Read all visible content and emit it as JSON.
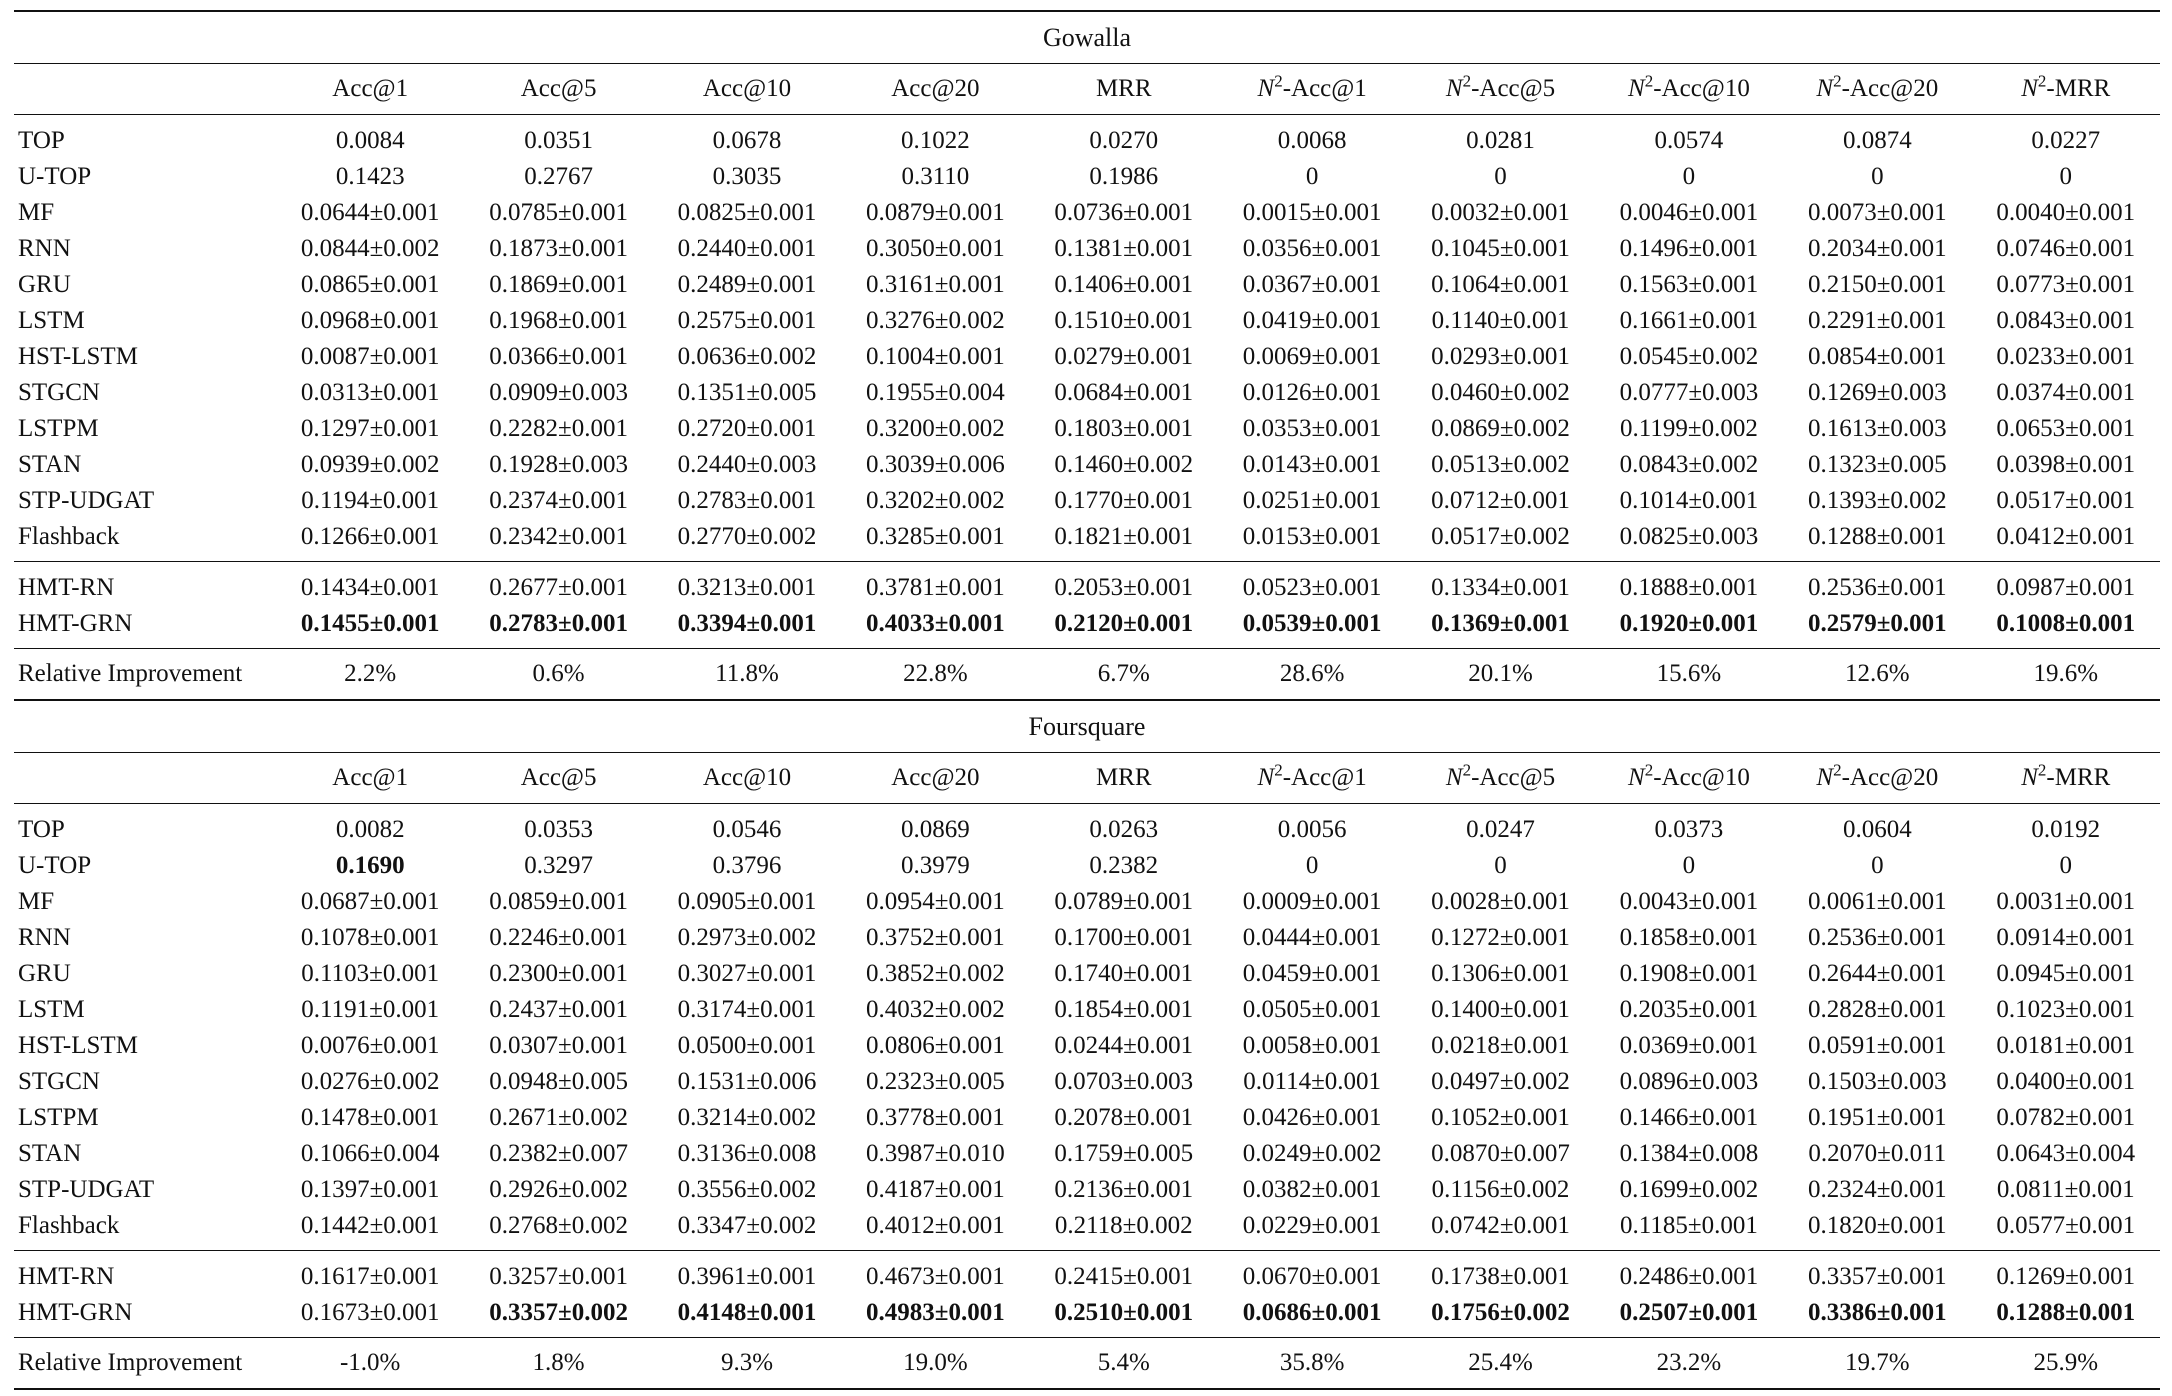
{
  "columns": [
    "Acc@1",
    "Acc@5",
    "Acc@10",
    "Acc@20",
    "MRR",
    "N2-Acc@1",
    "N2-Acc@5",
    "N2-Acc@10",
    "N2-Acc@20",
    "N2-MRR"
  ],
  "sections": [
    {
      "title": "Gowalla",
      "rows": [
        {
          "name": "TOP",
          "values": [
            "0.0084",
            "0.0351",
            "0.0678",
            "0.1022",
            "0.0270",
            "0.0068",
            "0.0281",
            "0.0574",
            "0.0874",
            "0.0227"
          ],
          "bold": []
        },
        {
          "name": "U-TOP",
          "values": [
            "0.1423",
            "0.2767",
            "0.3035",
            "0.3110",
            "0.1986",
            "0",
            "0",
            "0",
            "0",
            "0"
          ],
          "bold": []
        },
        {
          "name": "MF",
          "values": [
            "0.0644±0.001",
            "0.0785±0.001",
            "0.0825±0.001",
            "0.0879±0.001",
            "0.0736±0.001",
            "0.0015±0.001",
            "0.0032±0.001",
            "0.0046±0.001",
            "0.0073±0.001",
            "0.0040±0.001"
          ],
          "bold": []
        },
        {
          "name": "RNN",
          "values": [
            "0.0844±0.002",
            "0.1873±0.001",
            "0.2440±0.001",
            "0.3050±0.001",
            "0.1381±0.001",
            "0.0356±0.001",
            "0.1045±0.001",
            "0.1496±0.001",
            "0.2034±0.001",
            "0.0746±0.001"
          ],
          "bold": []
        },
        {
          "name": "GRU",
          "values": [
            "0.0865±0.001",
            "0.1869±0.001",
            "0.2489±0.001",
            "0.3161±0.001",
            "0.1406±0.001",
            "0.0367±0.001",
            "0.1064±0.001",
            "0.1563±0.001",
            "0.2150±0.001",
            "0.0773±0.001"
          ],
          "bold": []
        },
        {
          "name": "LSTM",
          "values": [
            "0.0968±0.001",
            "0.1968±0.001",
            "0.2575±0.001",
            "0.3276±0.002",
            "0.1510±0.001",
            "0.0419±0.001",
            "0.1140±0.001",
            "0.1661±0.001",
            "0.2291±0.001",
            "0.0843±0.001"
          ],
          "bold": []
        },
        {
          "name": "HST-LSTM",
          "values": [
            "0.0087±0.001",
            "0.0366±0.001",
            "0.0636±0.002",
            "0.1004±0.001",
            "0.0279±0.001",
            "0.0069±0.001",
            "0.0293±0.001",
            "0.0545±0.002",
            "0.0854±0.001",
            "0.0233±0.001"
          ],
          "bold": []
        },
        {
          "name": "STGCN",
          "values": [
            "0.0313±0.001",
            "0.0909±0.003",
            "0.1351±0.005",
            "0.1955±0.004",
            "0.0684±0.001",
            "0.0126±0.001",
            "0.0460±0.002",
            "0.0777±0.003",
            "0.1269±0.003",
            "0.0374±0.001"
          ],
          "bold": []
        },
        {
          "name": "LSTPM",
          "values": [
            "0.1297±0.001",
            "0.2282±0.001",
            "0.2720±0.001",
            "0.3200±0.002",
            "0.1803±0.001",
            "0.0353±0.001",
            "0.0869±0.002",
            "0.1199±0.002",
            "0.1613±0.003",
            "0.0653±0.001"
          ],
          "bold": []
        },
        {
          "name": "STAN",
          "values": [
            "0.0939±0.002",
            "0.1928±0.003",
            "0.2440±0.003",
            "0.3039±0.006",
            "0.1460±0.002",
            "0.0143±0.001",
            "0.0513±0.002",
            "0.0843±0.002",
            "0.1323±0.005",
            "0.0398±0.001"
          ],
          "bold": []
        },
        {
          "name": "STP-UDGAT",
          "values": [
            "0.1194±0.001",
            "0.2374±0.001",
            "0.2783±0.001",
            "0.3202±0.002",
            "0.1770±0.001",
            "0.0251±0.001",
            "0.0712±0.001",
            "0.1014±0.001",
            "0.1393±0.002",
            "0.0517±0.001"
          ],
          "bold": []
        },
        {
          "name": "Flashback",
          "values": [
            "0.1266±0.001",
            "0.2342±0.001",
            "0.2770±0.002",
            "0.3285±0.001",
            "0.1821±0.001",
            "0.0153±0.001",
            "0.0517±0.002",
            "0.0825±0.003",
            "0.1288±0.001",
            "0.0412±0.001"
          ],
          "bold": []
        }
      ],
      "hmt_rows": [
        {
          "name": "HMT-RN",
          "values": [
            "0.1434±0.001",
            "0.2677±0.001",
            "0.3213±0.001",
            "0.3781±0.001",
            "0.2053±0.001",
            "0.0523±0.001",
            "0.1334±0.001",
            "0.1888±0.001",
            "0.2536±0.001",
            "0.0987±0.001"
          ],
          "bold": []
        },
        {
          "name": "HMT-GRN",
          "values": [
            "0.1455±0.001",
            "0.2783±0.001",
            "0.3394±0.001",
            "0.4033±0.001",
            "0.2120±0.001",
            "0.0539±0.001",
            "0.1369±0.001",
            "0.1920±0.001",
            "0.2579±0.001",
            "0.1008±0.001"
          ],
          "bold": [
            0,
            1,
            2,
            3,
            4,
            5,
            6,
            7,
            8,
            9
          ]
        }
      ],
      "improvement": {
        "name": "Relative Improvement",
        "values": [
          "2.2%",
          "0.6%",
          "11.8%",
          "22.8%",
          "6.7%",
          "28.6%",
          "20.1%",
          "15.6%",
          "12.6%",
          "19.6%"
        ]
      }
    },
    {
      "title": "Foursquare",
      "rows": [
        {
          "name": "TOP",
          "values": [
            "0.0082",
            "0.0353",
            "0.0546",
            "0.0869",
            "0.0263",
            "0.0056",
            "0.0247",
            "0.0373",
            "0.0604",
            "0.0192"
          ],
          "bold": []
        },
        {
          "name": "U-TOP",
          "values": [
            "0.1690",
            "0.3297",
            "0.3796",
            "0.3979",
            "0.2382",
            "0",
            "0",
            "0",
            "0",
            "0"
          ],
          "bold": [
            0
          ]
        },
        {
          "name": "MF",
          "values": [
            "0.0687±0.001",
            "0.0859±0.001",
            "0.0905±0.001",
            "0.0954±0.001",
            "0.0789±0.001",
            "0.0009±0.001",
            "0.0028±0.001",
            "0.0043±0.001",
            "0.0061±0.001",
            "0.0031±0.001"
          ],
          "bold": []
        },
        {
          "name": "RNN",
          "values": [
            "0.1078±0.001",
            "0.2246±0.001",
            "0.2973±0.002",
            "0.3752±0.001",
            "0.1700±0.001",
            "0.0444±0.001",
            "0.1272±0.001",
            "0.1858±0.001",
            "0.2536±0.001",
            "0.0914±0.001"
          ],
          "bold": []
        },
        {
          "name": "GRU",
          "values": [
            "0.1103±0.001",
            "0.2300±0.001",
            "0.3027±0.001",
            "0.3852±0.002",
            "0.1740±0.001",
            "0.0459±0.001",
            "0.1306±0.001",
            "0.1908±0.001",
            "0.2644±0.001",
            "0.0945±0.001"
          ],
          "bold": []
        },
        {
          "name": "LSTM",
          "values": [
            "0.1191±0.001",
            "0.2437±0.001",
            "0.3174±0.001",
            "0.4032±0.002",
            "0.1854±0.001",
            "0.0505±0.001",
            "0.1400±0.001",
            "0.2035±0.001",
            "0.2828±0.001",
            "0.1023±0.001"
          ],
          "bold": []
        },
        {
          "name": "HST-LSTM",
          "values": [
            "0.0076±0.001",
            "0.0307±0.001",
            "0.0500±0.001",
            "0.0806±0.001",
            "0.0244±0.001",
            "0.0058±0.001",
            "0.0218±0.001",
            "0.0369±0.001",
            "0.0591±0.001",
            "0.0181±0.001"
          ],
          "bold": []
        },
        {
          "name": "STGCN",
          "values": [
            "0.0276±0.002",
            "0.0948±0.005",
            "0.1531±0.006",
            "0.2323±0.005",
            "0.0703±0.003",
            "0.0114±0.001",
            "0.0497±0.002",
            "0.0896±0.003",
            "0.1503±0.003",
            "0.0400±0.001"
          ],
          "bold": []
        },
        {
          "name": "LSTPM",
          "values": [
            "0.1478±0.001",
            "0.2671±0.002",
            "0.3214±0.002",
            "0.3778±0.001",
            "0.2078±0.001",
            "0.0426±0.001",
            "0.1052±0.001",
            "0.1466±0.001",
            "0.1951±0.001",
            "0.0782±0.001"
          ],
          "bold": []
        },
        {
          "name": "STAN",
          "values": [
            "0.1066±0.004",
            "0.2382±0.007",
            "0.3136±0.008",
            "0.3987±0.010",
            "0.1759±0.005",
            "0.0249±0.002",
            "0.0870±0.007",
            "0.1384±0.008",
            "0.2070±0.011",
            "0.0643±0.004"
          ],
          "bold": []
        },
        {
          "name": "STP-UDGAT",
          "values": [
            "0.1397±0.001",
            "0.2926±0.002",
            "0.3556±0.002",
            "0.4187±0.001",
            "0.2136±0.001",
            "0.0382±0.001",
            "0.1156±0.002",
            "0.1699±0.002",
            "0.2324±0.001",
            "0.0811±0.001"
          ],
          "bold": []
        },
        {
          "name": "Flashback",
          "values": [
            "0.1442±0.001",
            "0.2768±0.002",
            "0.3347±0.002",
            "0.4012±0.001",
            "0.2118±0.002",
            "0.0229±0.001",
            "0.0742±0.001",
            "0.1185±0.001",
            "0.1820±0.001",
            "0.0577±0.001"
          ],
          "bold": []
        }
      ],
      "hmt_rows": [
        {
          "name": "HMT-RN",
          "values": [
            "0.1617±0.001",
            "0.3257±0.001",
            "0.3961±0.001",
            "0.4673±0.001",
            "0.2415±0.001",
            "0.0670±0.001",
            "0.1738±0.001",
            "0.2486±0.001",
            "0.3357±0.001",
            "0.1269±0.001"
          ],
          "bold": []
        },
        {
          "name": "HMT-GRN",
          "values": [
            "0.1673±0.001",
            "0.3357±0.002",
            "0.4148±0.001",
            "0.4983±0.001",
            "0.2510±0.001",
            "0.0686±0.001",
            "0.1756±0.002",
            "0.2507±0.001",
            "0.3386±0.001",
            "0.1288±0.001"
          ],
          "bold": [
            1,
            2,
            3,
            4,
            5,
            6,
            7,
            8,
            9
          ]
        }
      ],
      "improvement": {
        "name": "Relative Improvement",
        "values": [
          "-1.0%",
          "1.8%",
          "9.3%",
          "19.0%",
          "5.4%",
          "35.8%",
          "25.4%",
          "23.2%",
          "19.7%",
          "25.9%"
        ]
      }
    }
  ]
}
